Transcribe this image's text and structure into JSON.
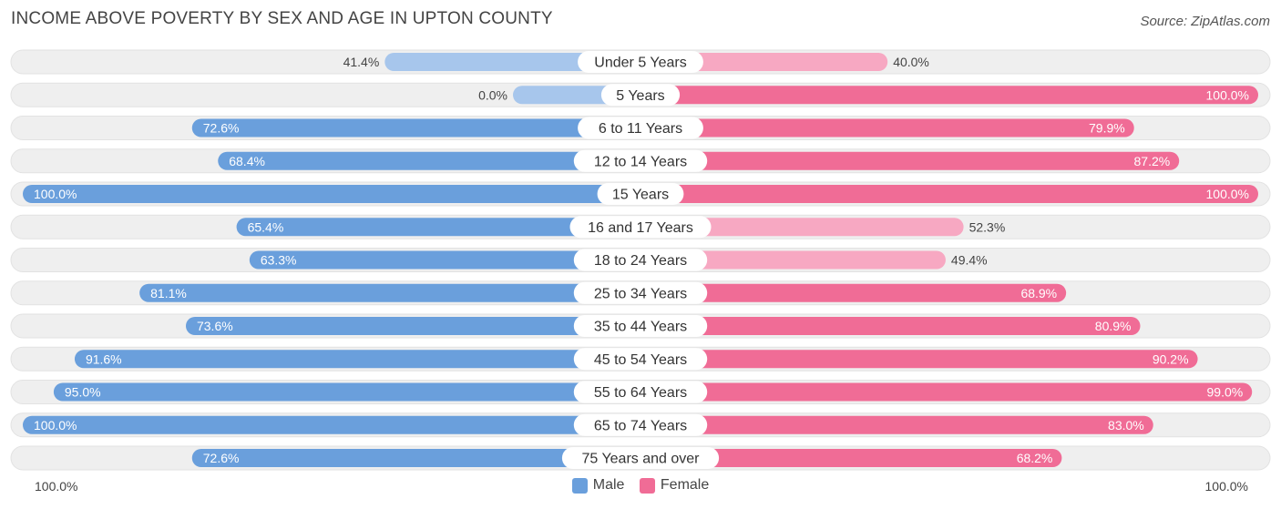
{
  "title": "INCOME ABOVE POVERTY BY SEX AND AGE IN UPTON COUNTY",
  "source": "Source: ZipAtlas.com",
  "colors": {
    "male_strong": "#6a9fdc",
    "male_light": "#a7c6ec",
    "female_strong": "#f06c96",
    "female_light": "#f7a8c2",
    "row_bg": "#efefef"
  },
  "legend": {
    "male": "Male",
    "female": "Female"
  },
  "axis": {
    "left": "100.0%",
    "right": "100.0%"
  },
  "chart_data": {
    "type": "bar",
    "orientation": "horizontal-diverging",
    "title": "INCOME ABOVE POVERTY BY SEX AND AGE IN UPTON COUNTY",
    "categories": [
      "Under 5 Years",
      "5 Years",
      "6 to 11 Years",
      "12 to 14 Years",
      "15 Years",
      "16 and 17 Years",
      "18 to 24 Years",
      "25 to 34 Years",
      "35 to 44 Years",
      "45 to 54 Years",
      "55 to 64 Years",
      "65 to 74 Years",
      "75 Years and over"
    ],
    "series": [
      {
        "name": "Male",
        "values": [
          41.4,
          0.0,
          72.6,
          68.4,
          100.0,
          65.4,
          63.3,
          81.1,
          73.6,
          91.6,
          95.0,
          100.0,
          72.6
        ],
        "labels": [
          "41.4%",
          "0.0%",
          "72.6%",
          "68.4%",
          "100.0%",
          "65.4%",
          "63.3%",
          "81.1%",
          "73.6%",
          "91.6%",
          "95.0%",
          "100.0%",
          "72.6%"
        ]
      },
      {
        "name": "Female",
        "values": [
          40.0,
          100.0,
          79.9,
          87.2,
          100.0,
          52.3,
          49.4,
          68.9,
          80.9,
          90.2,
          99.0,
          83.0,
          68.2
        ],
        "labels": [
          "40.0%",
          "100.0%",
          "79.9%",
          "87.2%",
          "100.0%",
          "52.3%",
          "49.4%",
          "68.9%",
          "80.9%",
          "90.2%",
          "99.0%",
          "83.0%",
          "68.2%"
        ]
      }
    ],
    "xlim": [
      0,
      100
    ]
  }
}
